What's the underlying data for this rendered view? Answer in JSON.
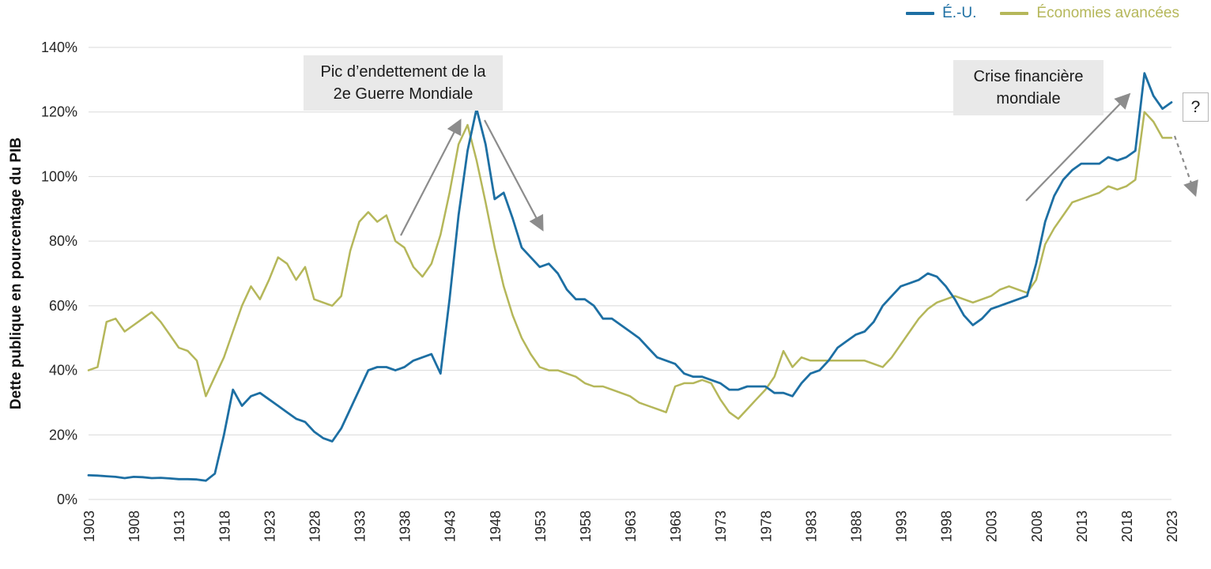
{
  "legend": {
    "series1_label": "É.-U.",
    "series2_label": "Économies avancées"
  },
  "ylabel": "Dette publique en pourcentage du PIB",
  "annotations": {
    "ww2": "Pic d’endettement de la 2e Guerre Mondiale",
    "gfc": "Crise financière mondiale",
    "question": "?"
  },
  "colors": {
    "us_line": "#1d6fa3",
    "advanced_line": "#b5b75a",
    "gridline": "#d9d9d9",
    "arrow": "#8c8c8c",
    "annotation_bg": "#e9e9e9",
    "tick_text": "#262626"
  },
  "chart_data": {
    "type": "line",
    "title": "",
    "xlabel": "",
    "ylabel": "Dette publique en pourcentage du PIB",
    "x_range": [
      1903,
      2023
    ],
    "ylim": [
      0,
      140
    ],
    "grid": "horizontal-only",
    "legend_position": "top-right",
    "x_ticks": [
      "1903",
      "1908",
      "1913",
      "1918",
      "1923",
      "1928",
      "1933",
      "1938",
      "1943",
      "1948",
      "1953",
      "1958",
      "1963",
      "1968",
      "1973",
      "1978",
      "1983",
      "1988",
      "1993",
      "1998",
      "2003",
      "2008",
      "2013",
      "2018",
      "2023"
    ],
    "y_ticks": [
      "0%",
      "20%",
      "40%",
      "60%",
      "80%",
      "100%",
      "120%",
      "140%"
    ],
    "y_tick_values": [
      0,
      20,
      40,
      60,
      80,
      100,
      120,
      140
    ],
    "series": [
      {
        "name": "Économies avancées",
        "key": "advanced-economies-line",
        "color": "#b5b75a",
        "width": 2.5,
        "x_start": 1903,
        "values": [
          40,
          41,
          55,
          56,
          52,
          54,
          56,
          58,
          55,
          51,
          47,
          46,
          43,
          32,
          38,
          44,
          52,
          60,
          66,
          62,
          68,
          75,
          73,
          68,
          72,
          62,
          61,
          60,
          63,
          77,
          86,
          89,
          86,
          88,
          80,
          78,
          72,
          69,
          73,
          82,
          95,
          110,
          116,
          105,
          92,
          78,
          66,
          57,
          50,
          45,
          41,
          40,
          40,
          39,
          38,
          36,
          35,
          35,
          34,
          33,
          32,
          30,
          29,
          28,
          27,
          35,
          36,
          36,
          37,
          36,
          31,
          27,
          25,
          28,
          31,
          34,
          38,
          46,
          41,
          44,
          43,
          43,
          43,
          43,
          43,
          43,
          43,
          42,
          41,
          44,
          48,
          52,
          56,
          59,
          61,
          62,
          63,
          62,
          61,
          62,
          63,
          65,
          66,
          65,
          64,
          68,
          79,
          84,
          88,
          92,
          93,
          94,
          95,
          97,
          96,
          97,
          99,
          120,
          117,
          112,
          112
        ]
      },
      {
        "name": "É.-U.",
        "key": "us-line",
        "color": "#1d6fa3",
        "width": 2.8,
        "x_start": 1903,
        "values": [
          7.5,
          7.4,
          7.2,
          7.0,
          6.6,
          7.0,
          6.9,
          6.6,
          6.7,
          6.5,
          6.3,
          6.3,
          6.2,
          5.8,
          8,
          20,
          34,
          29,
          32,
          33,
          31,
          29,
          27,
          25,
          24,
          21,
          19,
          18,
          22,
          28,
          34,
          40,
          41,
          41,
          40,
          41,
          43,
          44,
          45,
          39,
          62,
          88,
          108,
          121,
          110,
          93,
          95,
          87,
          78,
          75,
          72,
          73,
          70,
          65,
          62,
          62,
          60,
          56,
          56,
          54,
          52,
          50,
          47,
          44,
          43,
          42,
          39,
          38,
          38,
          37,
          36,
          34,
          34,
          35,
          35,
          35,
          33,
          33,
          32,
          36,
          39,
          40,
          43,
          47,
          49,
          51,
          52,
          55,
          60,
          63,
          66,
          67,
          68,
          70,
          69,
          66,
          62,
          57,
          54,
          56,
          59,
          60,
          61,
          62,
          63,
          73,
          86,
          94,
          99,
          102,
          104,
          104,
          104,
          106,
          105,
          106,
          108,
          132,
          125,
          121,
          123
        ]
      }
    ]
  }
}
